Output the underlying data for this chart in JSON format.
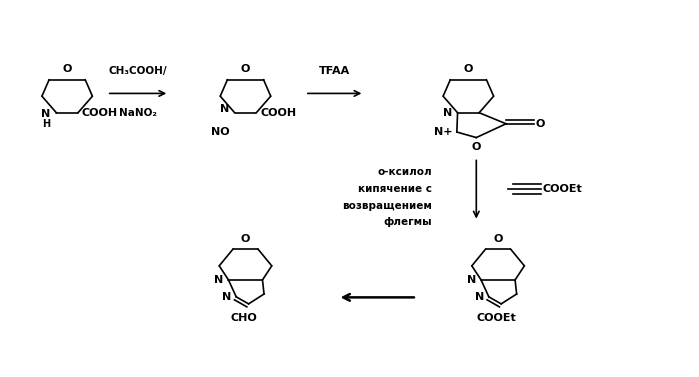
{
  "bg_color": "#ffffff",
  "line_color": "#000000",
  "figsize": [
    6.99,
    3.77
  ],
  "dpi": 100,
  "arrow1_label_top": "CH₃COOH/",
  "arrow1_label_bot": "NaNO₂",
  "arrow2_label": "TFAA",
  "arrow3_label_top": "о-ксилол",
  "arrow3_label_mid1": "кипячение с",
  "arrow3_label_mid2": "возвращением",
  "arrow3_label_bot": "флегмы",
  "label_cho": "CHO",
  "label_cooet": "COOEt"
}
